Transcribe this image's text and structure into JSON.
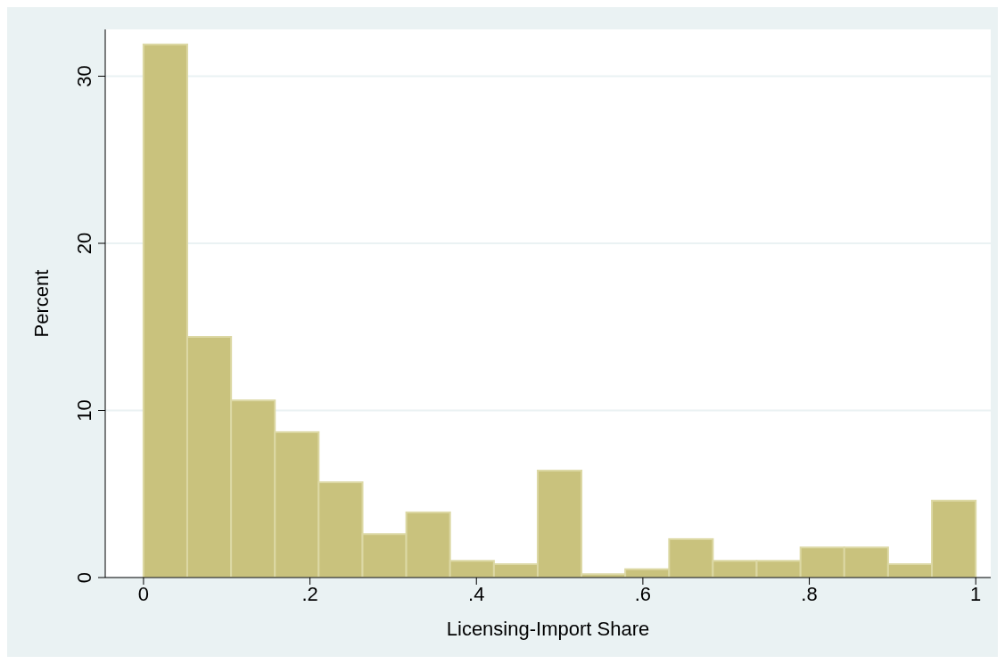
{
  "chart_data": {
    "type": "histogram",
    "xlabel": "Licensing-Import Share",
    "ylabel": "Percent",
    "bins": [
      0,
      0.0526,
      0.1053,
      0.1579,
      0.2105,
      0.2632,
      0.3158,
      0.3684,
      0.4211,
      0.4737,
      0.5263,
      0.5789,
      0.6316,
      0.6842,
      0.7368,
      0.7895,
      0.8421,
      0.8947,
      0.9474,
      1
    ],
    "values": [
      31.9,
      14.4,
      10.6,
      8.7,
      5.7,
      2.6,
      3.9,
      1.0,
      0.8,
      6.4,
      0.2,
      0.5,
      2.3,
      1.0,
      1.0,
      1.8,
      1.8,
      0.8,
      4.6
    ],
    "color": "#c9c27d",
    "xlim": [
      -0.046,
      1.018
    ],
    "xticks": [
      0,
      {
        "value": 0.2,
        "label": ".2"
      },
      {
        "value": 0.4,
        "label": ".4"
      },
      {
        "value": 0.6,
        "label": ".6"
      },
      {
        "value": 0.8,
        "label": ".8"
      },
      1
    ],
    "ylim": [
      0,
      32.8
    ],
    "yticks": [
      0,
      10,
      20,
      30
    ],
    "grid": "y"
  }
}
